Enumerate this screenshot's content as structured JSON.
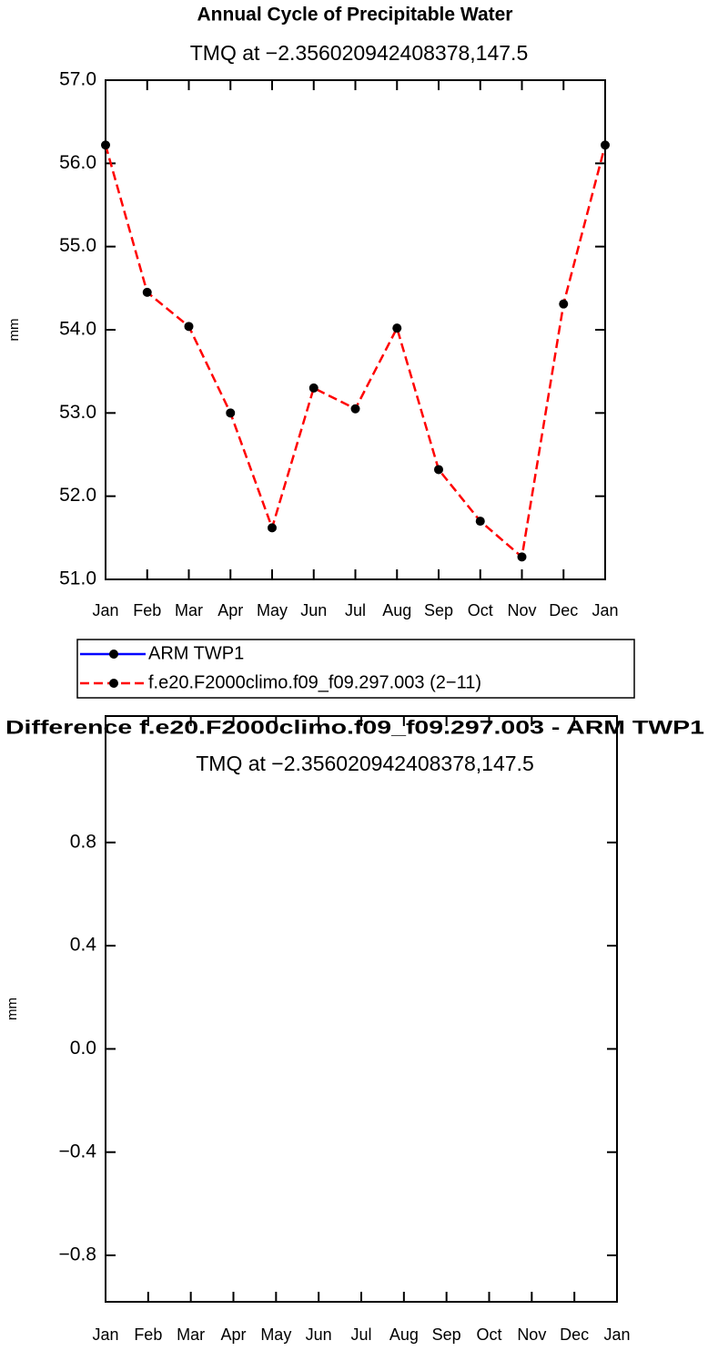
{
  "chart_data": [
    {
      "type": "line",
      "title": "Annual Cycle of Precipitable Water",
      "subtitle": "TMQ at −2.356020942408378,147.5",
      "y_label": "mm",
      "categories": [
        "Jan",
        "Feb",
        "Mar",
        "Apr",
        "May",
        "Jun",
        "Jul",
        "Aug",
        "Sep",
        "Oct",
        "Nov",
        "Dec",
        "Jan"
      ],
      "series": [
        {
          "name": "ARM TWP1",
          "color": "#0000ff",
          "line_style": "solid",
          "marker_color": "#000000",
          "values": [
            null,
            null,
            null,
            null,
            null,
            null,
            null,
            null,
            null,
            null,
            null,
            null,
            null
          ]
        },
        {
          "name": "f.e20.F2000climo.f09_f09.297.003 (2−11)",
          "color": "#ff0000",
          "line_style": "dashed",
          "marker_color": "#000000",
          "values": [
            56.22,
            54.45,
            54.04,
            53.0,
            51.62,
            53.3,
            53.05,
            54.02,
            52.32,
            51.7,
            51.27,
            54.31,
            56.22
          ]
        }
      ],
      "ylim": [
        51,
        57
      ],
      "yticks": [
        {
          "value": 51,
          "label": "51.0"
        },
        {
          "value": 52,
          "label": "52.0"
        },
        {
          "value": 53,
          "label": "53.0"
        },
        {
          "value": 54,
          "label": "54.0"
        },
        {
          "value": 55,
          "label": "55.0"
        },
        {
          "value": 56,
          "label": "56.0"
        },
        {
          "value": 57,
          "label": "57.0"
        }
      ],
      "legend": "bottom"
    },
    {
      "type": "line",
      "title": "Difference f.e20.F2000climo.f09_f09.297.003 - ARM TWP1",
      "subtitle": "TMQ at −2.356020942408378,147.5",
      "y_label": "mm",
      "categories": [
        "Jan",
        "Feb",
        "Mar",
        "Apr",
        "May",
        "Jun",
        "Jul",
        "Aug",
        "Sep",
        "Oct",
        "Nov",
        "Dec",
        "Jan"
      ],
      "ylim": [
        -0.98,
        1.29
      ],
      "yticks": [
        {
          "value": -0.8,
          "label": "−0.8"
        },
        {
          "value": -0.4,
          "label": "−0.4"
        },
        {
          "value": 0,
          "label": "0.0"
        },
        0.4,
        0.8
      ]
    }
  ]
}
